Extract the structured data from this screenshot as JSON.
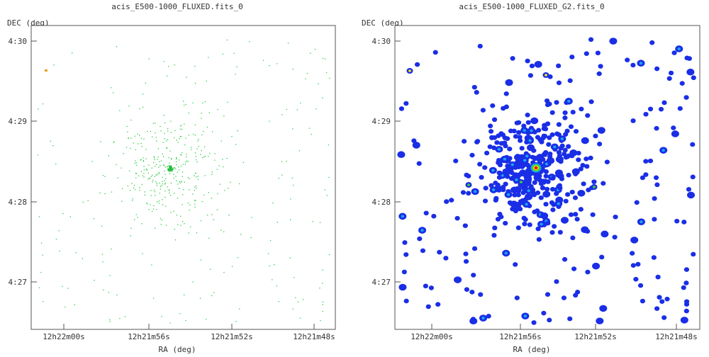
{
  "panels": [
    {
      "title": "acis_E500-1000_FLUXED.fits_0",
      "ylabel": "DEC (deg)",
      "xlabel": "RA (deg)",
      "yticks": [
        "4:30",
        "4:29",
        "4:28",
        "4:27"
      ],
      "xticks": [
        "12h22m00s",
        "12h21m56s",
        "12h21m52s",
        "12h21m48s"
      ],
      "style": "sparse-events",
      "colors": {
        "event": "#2ecc40",
        "center": "#1fbf3a",
        "hot": "#e8a020"
      }
    },
    {
      "title": "acis_E500-1000_FLUXED_G2.fits_0",
      "ylabel": "DEC (deg)",
      "xlabel": "RA (deg)",
      "yticks": [
        "4:30",
        "4:29",
        "4:28",
        "4:27"
      ],
      "xticks": [
        "12h22m00s",
        "12h21m56s",
        "12h21m52s",
        "12h21m48s"
      ],
      "style": "smoothed-blobs",
      "colors": {
        "blob": "#1a2ee6",
        "mid": "#17a6f0",
        "green": "#3bd12f",
        "yellow": "#f0e01a",
        "red": "#e01818"
      }
    }
  ]
}
